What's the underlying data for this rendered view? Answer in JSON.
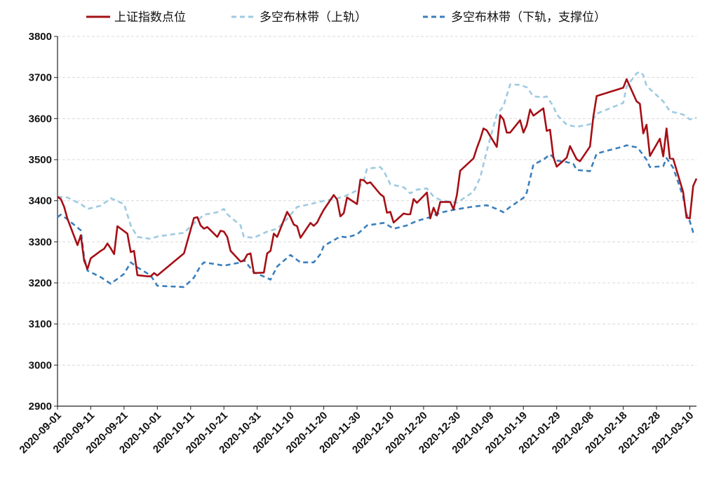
{
  "chart_data": {
    "type": "line",
    "title": "",
    "xlabel": "",
    "ylabel": "",
    "ylim": [
      2900,
      3800
    ],
    "y_ticks": [
      2900,
      3000,
      3100,
      3200,
      3300,
      3400,
      3500,
      3600,
      3700,
      3800
    ],
    "x_range": [
      "2020-09-01",
      "2021-03-12"
    ],
    "x_ticks": [
      "2020-09-01",
      "2020-09-11",
      "2020-09-21",
      "2020-10-01",
      "2020-10-11",
      "2020-10-21",
      "2020-10-31",
      "2020-11-10",
      "2020-11-20",
      "2020-11-30",
      "2020-12-10",
      "2020-12-20",
      "2020-12-30",
      "2021-01-09",
      "2021-01-19",
      "2021-01-29",
      "2021-02-08",
      "2021-02-18",
      "2021-02-28",
      "2021-03-10"
    ],
    "grid": "horizontal-dashed",
    "legend_position": "top",
    "series": [
      {
        "name": "上证指数点位",
        "color": "#a50f15",
        "style": "solid",
        "points": [
          [
            "2020-09-01",
            3410
          ],
          [
            "2020-09-02",
            3404
          ],
          [
            "2020-09-03",
            3385
          ],
          [
            "2020-09-04",
            3356
          ],
          [
            "2020-09-07",
            3292
          ],
          [
            "2020-09-08",
            3316
          ],
          [
            "2020-09-09",
            3254
          ],
          [
            "2020-09-10",
            3234
          ],
          [
            "2020-09-11",
            3260
          ],
          [
            "2020-09-14",
            3278
          ],
          [
            "2020-09-15",
            3283
          ],
          [
            "2020-09-16",
            3296
          ],
          [
            "2020-09-17",
            3284
          ],
          [
            "2020-09-18",
            3270
          ],
          [
            "2020-09-19",
            3338
          ],
          [
            "2020-09-22",
            3320
          ],
          [
            "2020-09-23",
            3275
          ],
          [
            "2020-09-24",
            3278
          ],
          [
            "2020-09-25",
            3219
          ],
          [
            "2020-09-28",
            3216
          ],
          [
            "2020-09-29",
            3216
          ],
          [
            "2020-09-30",
            3224
          ],
          [
            "2020-10-01",
            3218
          ],
          [
            "2020-10-09",
            3272
          ],
          [
            "2020-10-12",
            3358
          ],
          [
            "2020-10-13",
            3360
          ],
          [
            "2020-10-14",
            3340
          ],
          [
            "2020-10-15",
            3332
          ],
          [
            "2020-10-16",
            3336
          ],
          [
            "2020-10-19",
            3312
          ],
          [
            "2020-10-20",
            3327
          ],
          [
            "2020-10-21",
            3325
          ],
          [
            "2020-10-22",
            3312
          ],
          [
            "2020-10-23",
            3278
          ],
          [
            "2020-10-26",
            3252
          ],
          [
            "2020-10-27",
            3254
          ],
          [
            "2020-10-28",
            3269
          ],
          [
            "2020-10-29",
            3272
          ],
          [
            "2020-10-30",
            3224
          ],
          [
            "2020-11-02",
            3225
          ],
          [
            "2020-11-03",
            3272
          ],
          [
            "2020-11-04",
            3278
          ],
          [
            "2020-11-05",
            3320
          ],
          [
            "2020-11-06",
            3312
          ],
          [
            "2020-11-09",
            3373
          ],
          [
            "2020-11-10",
            3360
          ],
          [
            "2020-11-11",
            3342
          ],
          [
            "2020-11-12",
            3338
          ],
          [
            "2020-11-13",
            3310
          ],
          [
            "2020-11-16",
            3346
          ],
          [
            "2020-11-17",
            3339
          ],
          [
            "2020-11-18",
            3347
          ],
          [
            "2020-11-19",
            3363
          ],
          [
            "2020-11-20",
            3378
          ],
          [
            "2020-11-23",
            3414
          ],
          [
            "2020-11-24",
            3403
          ],
          [
            "2020-11-25",
            3362
          ],
          [
            "2020-11-26",
            3370
          ],
          [
            "2020-11-27",
            3408
          ],
          [
            "2020-11-30",
            3392
          ],
          [
            "2020-12-01",
            3451
          ],
          [
            "2020-12-02",
            3450
          ],
          [
            "2020-12-03",
            3442
          ],
          [
            "2020-12-04",
            3445
          ],
          [
            "2020-12-07",
            3416
          ],
          [
            "2020-12-08",
            3410
          ],
          [
            "2020-12-09",
            3371
          ],
          [
            "2020-12-10",
            3373
          ],
          [
            "2020-12-11",
            3347
          ],
          [
            "2020-12-14",
            3369
          ],
          [
            "2020-12-15",
            3367
          ],
          [
            "2020-12-16",
            3367
          ],
          [
            "2020-12-17",
            3404
          ],
          [
            "2020-12-18",
            3395
          ],
          [
            "2020-12-21",
            3420
          ],
          [
            "2020-12-22",
            3357
          ],
          [
            "2020-12-23",
            3383
          ],
          [
            "2020-12-24",
            3364
          ],
          [
            "2020-12-25",
            3397
          ],
          [
            "2020-12-28",
            3397
          ],
          [
            "2020-12-29",
            3379
          ],
          [
            "2020-12-30",
            3414
          ],
          [
            "2020-12-31",
            3473
          ],
          [
            "2021-01-04",
            3503
          ],
          [
            "2021-01-05",
            3528
          ],
          [
            "2021-01-06",
            3550
          ],
          [
            "2021-01-07",
            3576
          ],
          [
            "2021-01-08",
            3571
          ],
          [
            "2021-01-11",
            3531
          ],
          [
            "2021-01-12",
            3608
          ],
          [
            "2021-01-13",
            3598
          ],
          [
            "2021-01-14",
            3566
          ],
          [
            "2021-01-15",
            3566
          ],
          [
            "2021-01-18",
            3596
          ],
          [
            "2021-01-19",
            3566
          ],
          [
            "2021-01-20",
            3584
          ],
          [
            "2021-01-21",
            3622
          ],
          [
            "2021-01-22",
            3607
          ],
          [
            "2021-01-25",
            3625
          ],
          [
            "2021-01-26",
            3570
          ],
          [
            "2021-01-27",
            3573
          ],
          [
            "2021-01-28",
            3506
          ],
          [
            "2021-01-29",
            3483
          ],
          [
            "2021-02-01",
            3505
          ],
          [
            "2021-02-02",
            3533
          ],
          [
            "2021-02-03",
            3517
          ],
          [
            "2021-02-04",
            3501
          ],
          [
            "2021-02-05",
            3496
          ],
          [
            "2021-02-08",
            3532
          ],
          [
            "2021-02-09",
            3604
          ],
          [
            "2021-02-10",
            3655
          ],
          [
            "2021-02-18",
            3675
          ],
          [
            "2021-02-19",
            3696
          ],
          [
            "2021-02-22",
            3642
          ],
          [
            "2021-02-23",
            3636
          ],
          [
            "2021-02-24",
            3564
          ],
          [
            "2021-02-25",
            3585
          ],
          [
            "2021-02-26",
            3509
          ],
          [
            "2021-03-01",
            3551
          ],
          [
            "2021-03-02",
            3508
          ],
          [
            "2021-03-03",
            3576
          ],
          [
            "2021-03-04",
            3503
          ],
          [
            "2021-03-05",
            3502
          ],
          [
            "2021-03-08",
            3421
          ],
          [
            "2021-03-09",
            3359
          ],
          [
            "2021-03-10",
            3357
          ],
          [
            "2021-03-11",
            3436
          ],
          [
            "2021-03-12",
            3454
          ]
        ]
      },
      {
        "name": "多空布林带（上轨）",
        "color": "#9ecae1",
        "style": "dashed",
        "points": [
          [
            "2020-09-01",
            3410
          ],
          [
            "2020-09-04",
            3408
          ],
          [
            "2020-09-08",
            3392
          ],
          [
            "2020-09-10",
            3380
          ],
          [
            "2020-09-14",
            3388
          ],
          [
            "2020-09-17",
            3406
          ],
          [
            "2020-09-21",
            3392
          ],
          [
            "2020-09-23",
            3340
          ],
          [
            "2020-09-25",
            3312
          ],
          [
            "2020-09-29",
            3307
          ],
          [
            "2020-10-01",
            3313
          ],
          [
            "2020-10-09",
            3322
          ],
          [
            "2020-10-12",
            3345
          ],
          [
            "2020-10-15",
            3366
          ],
          [
            "2020-10-19",
            3372
          ],
          [
            "2020-10-21",
            3380
          ],
          [
            "2020-10-22",
            3367
          ],
          [
            "2020-10-26",
            3340
          ],
          [
            "2020-10-27",
            3312
          ],
          [
            "2020-10-30",
            3310
          ],
          [
            "2020-11-03",
            3325
          ],
          [
            "2020-11-06",
            3332
          ],
          [
            "2020-11-09",
            3356
          ],
          [
            "2020-11-12",
            3385
          ],
          [
            "2020-11-16",
            3392
          ],
          [
            "2020-11-19",
            3398
          ],
          [
            "2020-11-23",
            3404
          ],
          [
            "2020-11-26",
            3410
          ],
          [
            "2020-11-30",
            3425
          ],
          [
            "2020-12-02",
            3448
          ],
          [
            "2020-12-03",
            3478
          ],
          [
            "2020-12-07",
            3482
          ],
          [
            "2020-12-08",
            3473
          ],
          [
            "2020-12-10",
            3440
          ],
          [
            "2020-12-14",
            3433
          ],
          [
            "2020-12-16",
            3418
          ],
          [
            "2020-12-18",
            3427
          ],
          [
            "2020-12-21",
            3430
          ],
          [
            "2020-12-23",
            3410
          ],
          [
            "2020-12-25",
            3402
          ],
          [
            "2020-12-30",
            3395
          ],
          [
            "2021-01-04",
            3422
          ],
          [
            "2021-01-06",
            3456
          ],
          [
            "2021-01-08",
            3522
          ],
          [
            "2021-01-11",
            3610
          ],
          [
            "2021-01-13",
            3630
          ],
          [
            "2021-01-15",
            3683
          ],
          [
            "2021-01-18",
            3682
          ],
          [
            "2021-01-20",
            3676
          ],
          [
            "2021-01-22",
            3654
          ],
          [
            "2021-01-25",
            3652
          ],
          [
            "2021-01-26",
            3654
          ],
          [
            "2021-01-28",
            3630
          ],
          [
            "2021-01-29",
            3610
          ],
          [
            "2021-02-01",
            3585
          ],
          [
            "2021-02-04",
            3580
          ],
          [
            "2021-02-08",
            3586
          ],
          [
            "2021-02-10",
            3612
          ],
          [
            "2021-02-18",
            3638
          ],
          [
            "2021-02-19",
            3678
          ],
          [
            "2021-02-22",
            3710
          ],
          [
            "2021-02-23",
            3714
          ],
          [
            "2021-02-24",
            3706
          ],
          [
            "2021-02-25",
            3680
          ],
          [
            "2021-02-26",
            3672
          ],
          [
            "2021-03-02",
            3642
          ],
          [
            "2021-03-04",
            3618
          ],
          [
            "2021-03-08",
            3610
          ],
          [
            "2021-03-10",
            3598
          ],
          [
            "2021-03-12",
            3602
          ]
        ]
      },
      {
        "name": "多空布林带（下轨，支撑位）",
        "color": "#3a7fbd",
        "style": "dashed",
        "points": [
          [
            "2020-09-01",
            3360
          ],
          [
            "2020-09-02",
            3366
          ],
          [
            "2020-09-04",
            3355
          ],
          [
            "2020-09-08",
            3328
          ],
          [
            "2020-09-09",
            3262
          ],
          [
            "2020-09-10",
            3230
          ],
          [
            "2020-09-14",
            3214
          ],
          [
            "2020-09-17",
            3198
          ],
          [
            "2020-09-21",
            3222
          ],
          [
            "2020-09-23",
            3250
          ],
          [
            "2020-09-25",
            3238
          ],
          [
            "2020-09-29",
            3218
          ],
          [
            "2020-10-01",
            3193
          ],
          [
            "2020-10-09",
            3190
          ],
          [
            "2020-10-12",
            3213
          ],
          [
            "2020-10-14",
            3242
          ],
          [
            "2020-10-15",
            3250
          ],
          [
            "2020-10-19",
            3245
          ],
          [
            "2020-10-21",
            3242
          ],
          [
            "2020-10-26",
            3250
          ],
          [
            "2020-10-27",
            3256
          ],
          [
            "2020-10-30",
            3226
          ],
          [
            "2020-11-03",
            3212
          ],
          [
            "2020-11-04",
            3208
          ],
          [
            "2020-11-06",
            3240
          ],
          [
            "2020-11-10",
            3268
          ],
          [
            "2020-11-11",
            3262
          ],
          [
            "2020-11-13",
            3250
          ],
          [
            "2020-11-17",
            3250
          ],
          [
            "2020-11-19",
            3270
          ],
          [
            "2020-11-20",
            3290
          ],
          [
            "2020-11-25",
            3313
          ],
          [
            "2020-11-27",
            3311
          ],
          [
            "2020-11-30",
            3318
          ],
          [
            "2020-12-03",
            3340
          ],
          [
            "2020-12-08",
            3346
          ],
          [
            "2020-12-09",
            3342
          ],
          [
            "2020-12-11",
            3332
          ],
          [
            "2020-12-15",
            3340
          ],
          [
            "2020-12-18",
            3351
          ],
          [
            "2020-12-22",
            3360
          ],
          [
            "2020-12-25",
            3371
          ],
          [
            "2020-12-29",
            3378
          ],
          [
            "2021-01-04",
            3386
          ],
          [
            "2021-01-08",
            3389
          ],
          [
            "2021-01-11",
            3380
          ],
          [
            "2021-01-13",
            3372
          ],
          [
            "2021-01-15",
            3385
          ],
          [
            "2021-01-19",
            3407
          ],
          [
            "2021-01-20",
            3420
          ],
          [
            "2021-01-22",
            3488
          ],
          [
            "2021-01-25",
            3500
          ],
          [
            "2021-01-27",
            3513
          ],
          [
            "2021-01-29",
            3498
          ],
          [
            "2021-02-01",
            3494
          ],
          [
            "2021-02-03",
            3490
          ],
          [
            "2021-02-04",
            3475
          ],
          [
            "2021-02-08",
            3472
          ],
          [
            "2021-02-10",
            3515
          ],
          [
            "2021-02-18",
            3532
          ],
          [
            "2021-02-19",
            3535
          ],
          [
            "2021-02-22",
            3530
          ],
          [
            "2021-02-23",
            3522
          ],
          [
            "2021-02-25",
            3500
          ],
          [
            "2021-02-26",
            3482
          ],
          [
            "2021-03-02",
            3484
          ],
          [
            "2021-03-03",
            3504
          ],
          [
            "2021-03-05",
            3480
          ],
          [
            "2021-03-08",
            3410
          ],
          [
            "2021-03-09",
            3367
          ],
          [
            "2021-03-10",
            3350
          ],
          [
            "2021-03-11",
            3323
          ],
          [
            "2021-03-12",
            3318
          ]
        ]
      }
    ]
  }
}
